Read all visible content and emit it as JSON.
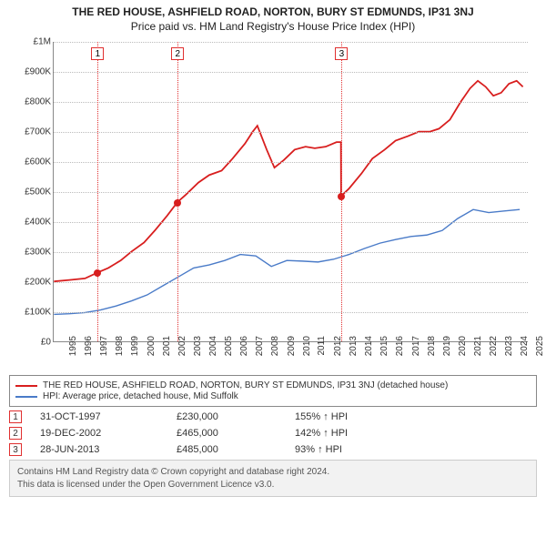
{
  "title": "THE RED HOUSE, ASHFIELD ROAD, NORTON, BURY ST EDMUNDS, IP31 3NJ",
  "subtitle": "Price paid vs. HM Land Registry's House Price Index (HPI)",
  "chart": {
    "type": "line",
    "x_range": [
      1995,
      2025.5
    ],
    "y_range": [
      0,
      1000000
    ],
    "y_ticks": [
      {
        "v": 0,
        "label": "£0"
      },
      {
        "v": 100000,
        "label": "£100K"
      },
      {
        "v": 200000,
        "label": "£200K"
      },
      {
        "v": 300000,
        "label": "£300K"
      },
      {
        "v": 400000,
        "label": "£400K"
      },
      {
        "v": 500000,
        "label": "£500K"
      },
      {
        "v": 600000,
        "label": "£600K"
      },
      {
        "v": 700000,
        "label": "£700K"
      },
      {
        "v": 800000,
        "label": "£800K"
      },
      {
        "v": 900000,
        "label": "£900K"
      },
      {
        "v": 1000000,
        "label": "£1M"
      }
    ],
    "x_ticks": [
      1995,
      1996,
      1997,
      1998,
      1999,
      2000,
      2001,
      2002,
      2003,
      2004,
      2005,
      2006,
      2007,
      2008,
      2009,
      2010,
      2011,
      2012,
      2013,
      2014,
      2015,
      2016,
      2017,
      2018,
      2019,
      2020,
      2021,
      2022,
      2023,
      2024,
      2025
    ],
    "grid_color": "#bbbbbb",
    "axis_color": "#888888",
    "series": [
      {
        "name": "THE RED HOUSE, ASHFIELD ROAD, NORTON, BURY ST EDMUNDS, IP31 3NJ (detached house)",
        "color": "#d81e1e",
        "width": 1.8,
        "data": [
          [
            1995.0,
            200000
          ],
          [
            1996.0,
            205000
          ],
          [
            1997.0,
            210000
          ],
          [
            1997.83,
            230000
          ],
          [
            1998.5,
            245000
          ],
          [
            1999.3,
            270000
          ],
          [
            2000.0,
            300000
          ],
          [
            2000.8,
            330000
          ],
          [
            2001.5,
            370000
          ],
          [
            2002.3,
            420000
          ],
          [
            2002.96,
            465000
          ],
          [
            2003.5,
            490000
          ],
          [
            2004.3,
            530000
          ],
          [
            2005.0,
            555000
          ],
          [
            2005.8,
            570000
          ],
          [
            2006.5,
            610000
          ],
          [
            2007.3,
            660000
          ],
          [
            2007.8,
            700000
          ],
          [
            2008.1,
            720000
          ],
          [
            2008.7,
            640000
          ],
          [
            2009.2,
            580000
          ],
          [
            2009.8,
            605000
          ],
          [
            2010.5,
            640000
          ],
          [
            2011.2,
            650000
          ],
          [
            2011.8,
            645000
          ],
          [
            2012.5,
            650000
          ],
          [
            2013.2,
            665000
          ],
          [
            2013.48,
            665000
          ],
          [
            2013.49,
            485000
          ],
          [
            2014.0,
            510000
          ],
          [
            2014.8,
            560000
          ],
          [
            2015.5,
            610000
          ],
          [
            2016.3,
            640000
          ],
          [
            2017.0,
            670000
          ],
          [
            2017.8,
            685000
          ],
          [
            2018.5,
            700000
          ],
          [
            2019.2,
            700000
          ],
          [
            2019.8,
            710000
          ],
          [
            2020.5,
            740000
          ],
          [
            2021.2,
            800000
          ],
          [
            2021.8,
            845000
          ],
          [
            2022.3,
            870000
          ],
          [
            2022.8,
            850000
          ],
          [
            2023.3,
            820000
          ],
          [
            2023.8,
            830000
          ],
          [
            2024.3,
            860000
          ],
          [
            2024.8,
            870000
          ],
          [
            2025.2,
            850000
          ]
        ]
      },
      {
        "name": "HPI: Average price, detached house, Mid Suffolk",
        "color": "#4a7bc8",
        "width": 1.4,
        "data": [
          [
            1995.0,
            90000
          ],
          [
            1996.0,
            92000
          ],
          [
            1997.0,
            96000
          ],
          [
            1998.0,
            105000
          ],
          [
            1999.0,
            118000
          ],
          [
            2000.0,
            135000
          ],
          [
            2001.0,
            155000
          ],
          [
            2002.0,
            185000
          ],
          [
            2003.0,
            215000
          ],
          [
            2004.0,
            245000
          ],
          [
            2005.0,
            255000
          ],
          [
            2006.0,
            270000
          ],
          [
            2007.0,
            290000
          ],
          [
            2008.0,
            285000
          ],
          [
            2009.0,
            250000
          ],
          [
            2010.0,
            270000
          ],
          [
            2011.0,
            268000
          ],
          [
            2012.0,
            265000
          ],
          [
            2013.0,
            274000
          ],
          [
            2014.0,
            290000
          ],
          [
            2015.0,
            310000
          ],
          [
            2016.0,
            328000
          ],
          [
            2017.0,
            340000
          ],
          [
            2018.0,
            350000
          ],
          [
            2019.0,
            355000
          ],
          [
            2020.0,
            370000
          ],
          [
            2021.0,
            410000
          ],
          [
            2022.0,
            440000
          ],
          [
            2023.0,
            430000
          ],
          [
            2024.0,
            435000
          ],
          [
            2025.0,
            440000
          ]
        ]
      }
    ],
    "markers": [
      {
        "n": 1,
        "x": 1997.83,
        "y": 230000,
        "color": "#d81e1e"
      },
      {
        "n": 2,
        "x": 2002.96,
        "y": 465000,
        "color": "#d81e1e"
      },
      {
        "n": 3,
        "x": 2013.49,
        "y": 485000,
        "color": "#d81e1e"
      }
    ],
    "marker_line_color": "#e03030"
  },
  "legend": [
    {
      "color": "#d81e1e",
      "label": "THE RED HOUSE, ASHFIELD ROAD, NORTON, BURY ST EDMUNDS, IP31 3NJ (detached house)"
    },
    {
      "color": "#4a7bc8",
      "label": "HPI: Average price, detached house, Mid Suffolk"
    }
  ],
  "sales": [
    {
      "n": "1",
      "date": "31-OCT-1997",
      "price": "£230,000",
      "hpi": "155% ↑ HPI"
    },
    {
      "n": "2",
      "date": "19-DEC-2002",
      "price": "£465,000",
      "hpi": "142% ↑ HPI"
    },
    {
      "n": "3",
      "date": "28-JUN-2013",
      "price": "£485,000",
      "hpi": "93% ↑ HPI"
    }
  ],
  "footer": {
    "line1": "Contains HM Land Registry data © Crown copyright and database right 2024.",
    "line2": "This data is licensed under the Open Government Licence v3.0."
  }
}
